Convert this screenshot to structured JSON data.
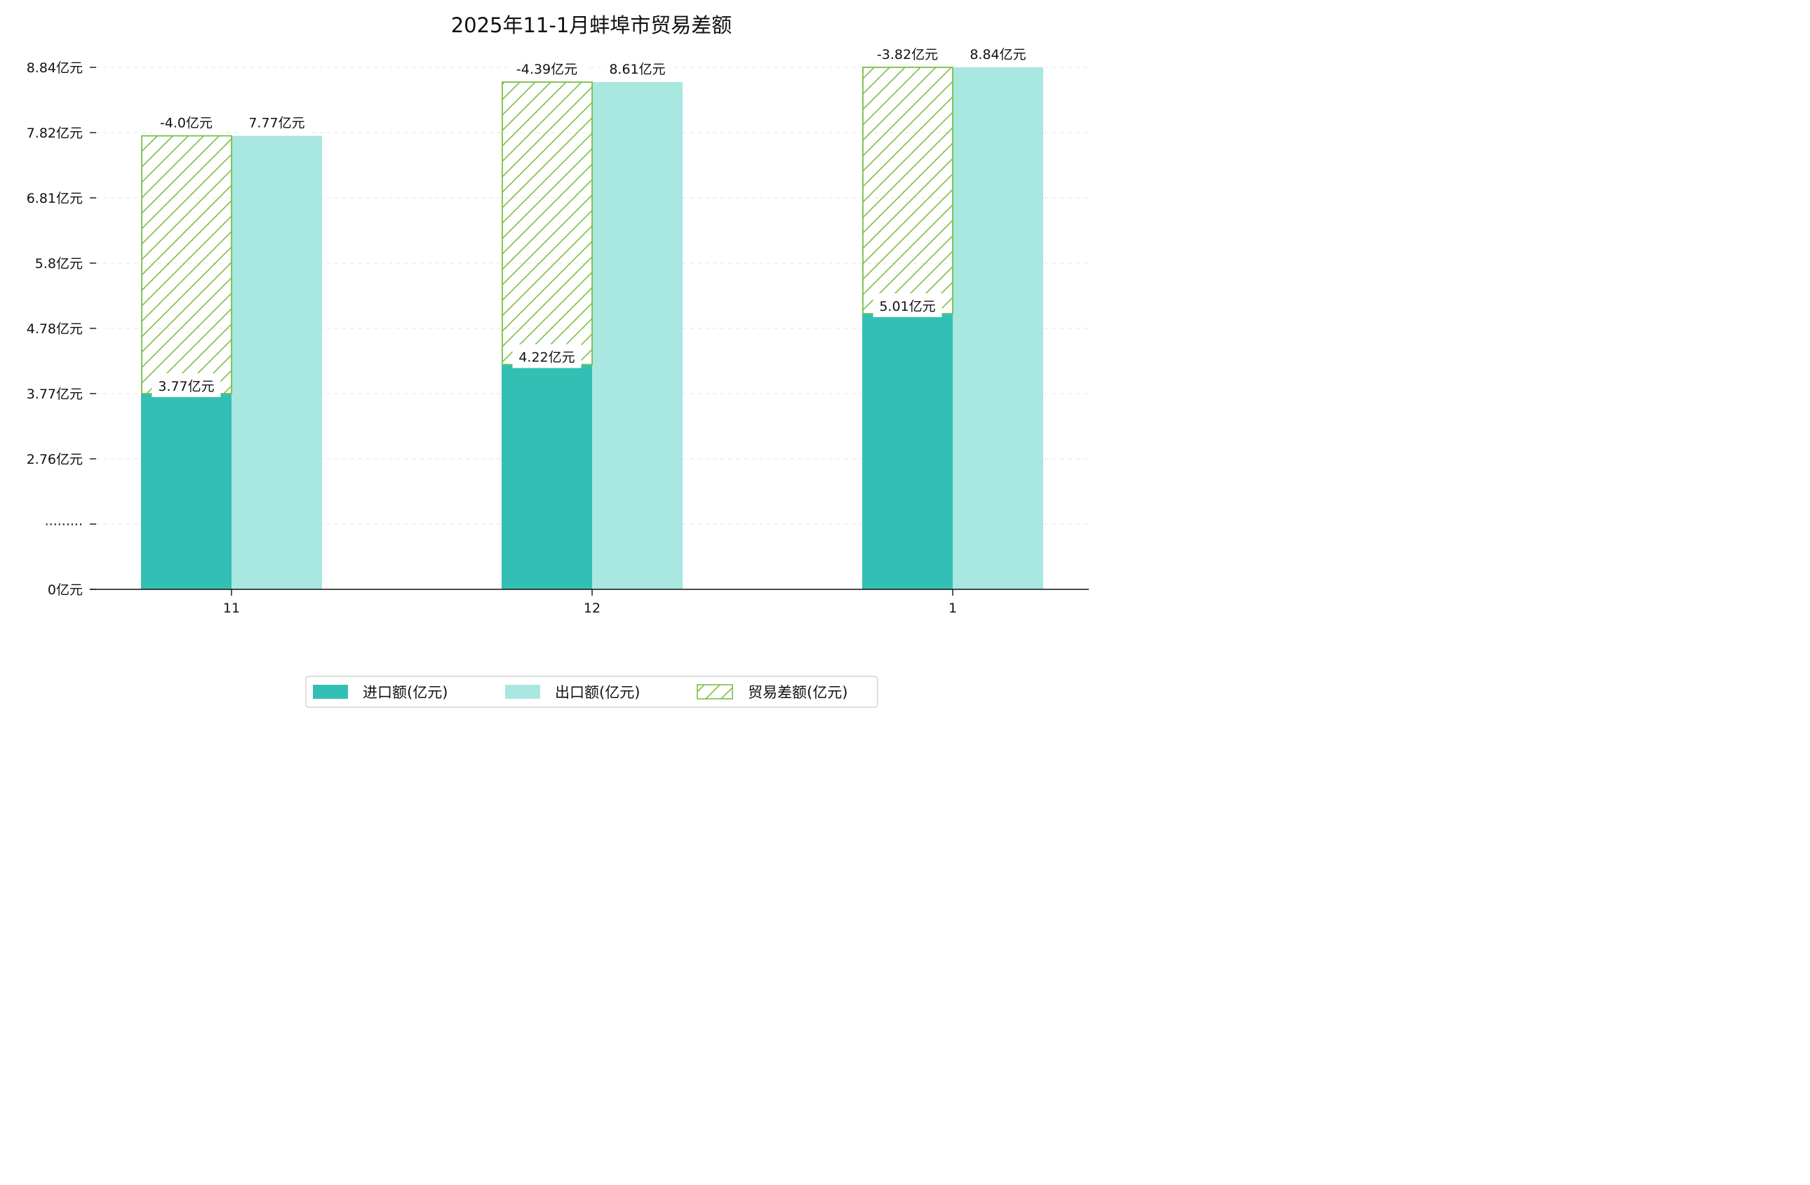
{
  "chart_data": {
    "type": "bar",
    "title": "2025年11-1月蚌埠市贸易差额",
    "categories": [
      "11",
      "12",
      "1"
    ],
    "series": [
      {
        "name": "进口额(亿元)",
        "color": "#32c0b4",
        "values": [
          3.77,
          4.22,
          5.01
        ],
        "labels": [
          "3.77亿元",
          "4.22亿元",
          "5.01亿元"
        ]
      },
      {
        "name": "出口额(亿元)",
        "color": "#a9e7e1",
        "values": [
          7.77,
          8.61,
          8.84
        ],
        "labels": [
          "7.77亿元",
          "8.61亿元",
          "8.84亿元"
        ]
      },
      {
        "name": "贸易差额(亿元)",
        "color": "#7bbf47",
        "values": [
          -4.0,
          -4.39,
          -3.82
        ],
        "labels": [
          "-4.0亿元",
          "-4.39亿元",
          "-3.82亿元"
        ]
      }
    ],
    "yticks": [
      "0亿元",
      "·········",
      "2.76亿元",
      "3.77亿元",
      "4.78亿元",
      "5.8亿元",
      "6.81亿元",
      "7.82亿元",
      "8.84亿元"
    ],
    "ylim": [
      0,
      8.84
    ],
    "grid": true,
    "legend_position": "bottom-center"
  }
}
